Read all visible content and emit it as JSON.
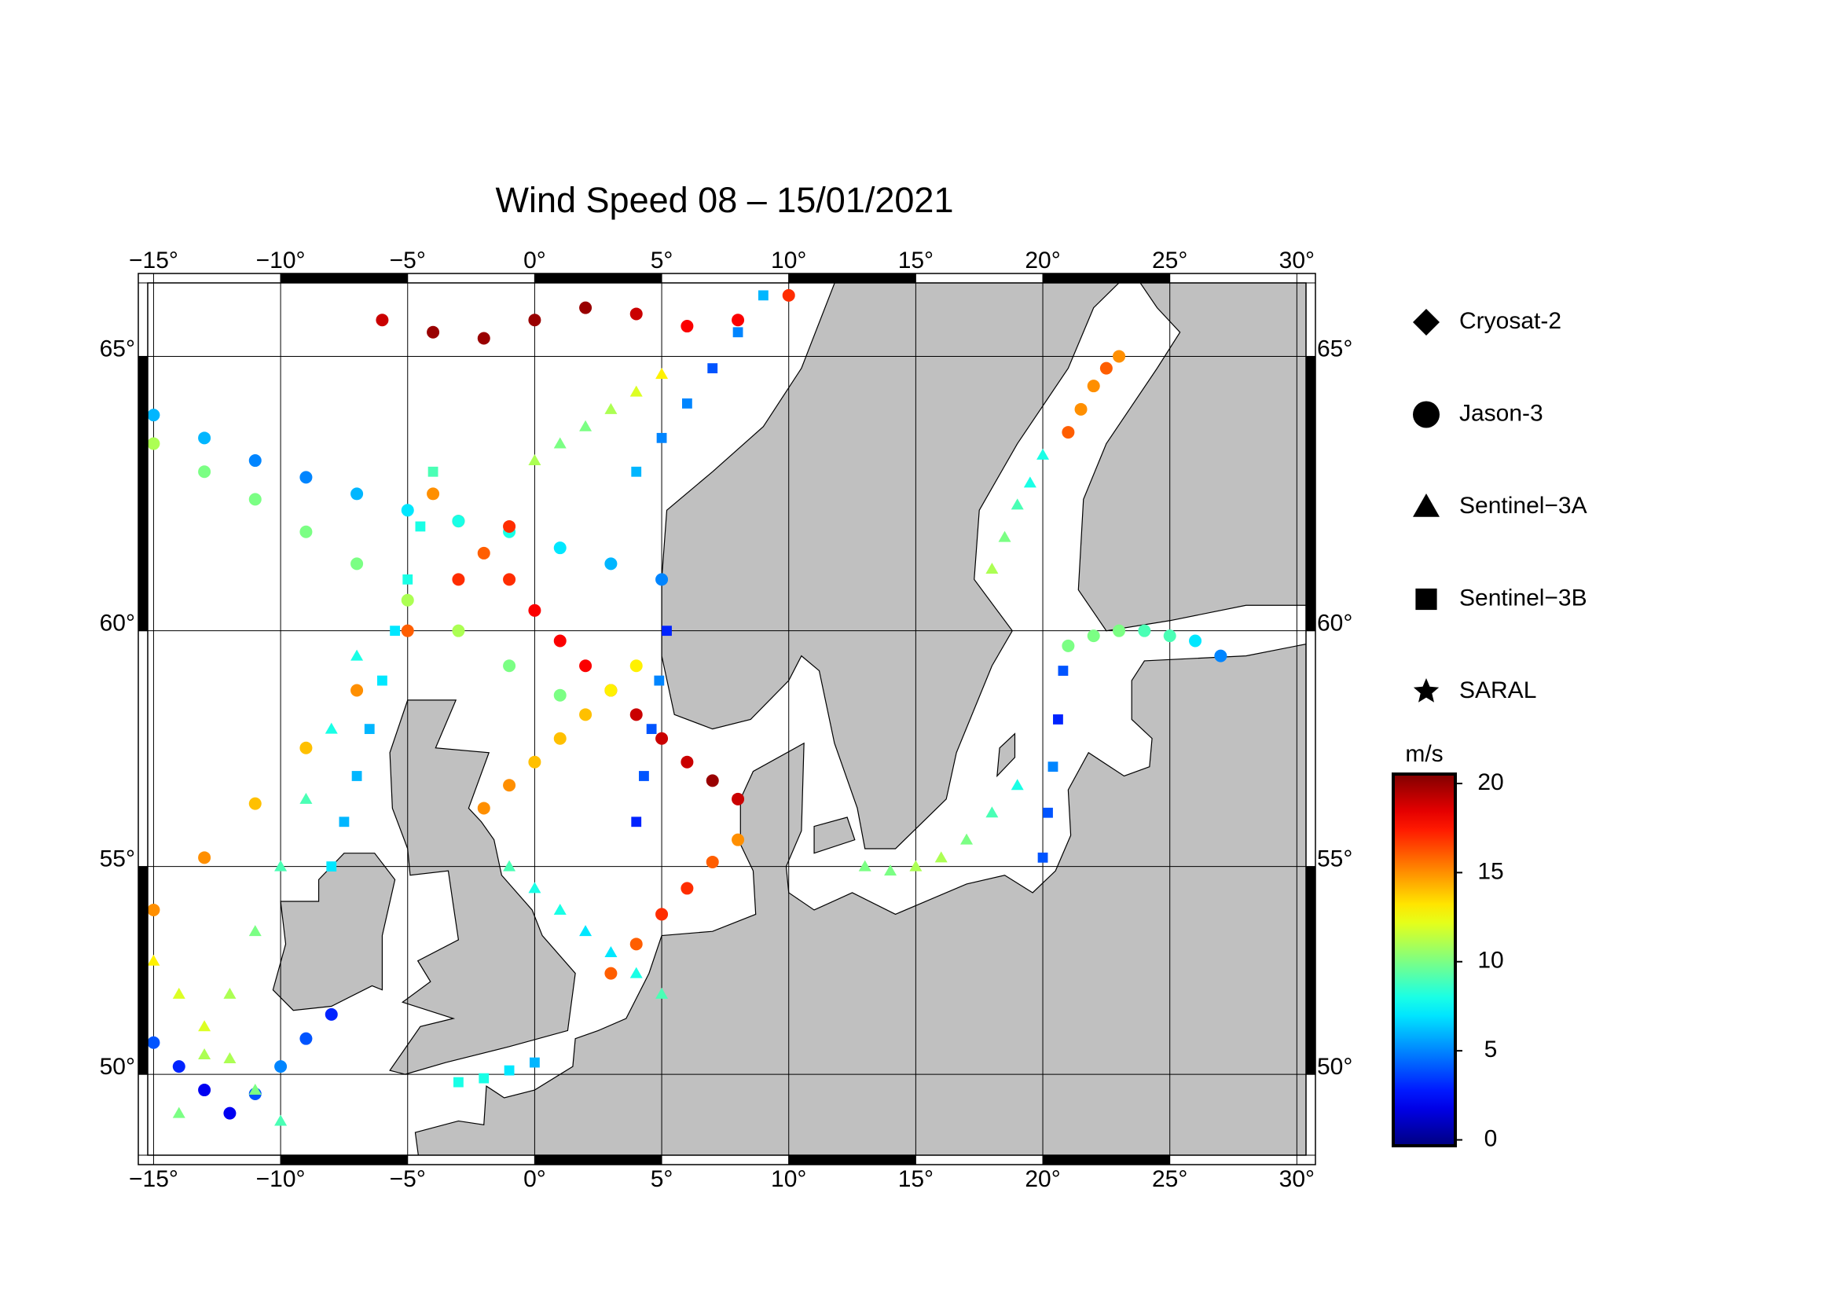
{
  "chart_data": {
    "type": "map",
    "title": "Wind Speed 08 – 15/01/2021",
    "projection": "mercator",
    "xlim": [
      -15.23,
      30.36
    ],
    "ylim": [
      47.9,
      66.2
    ],
    "xticks": [
      {
        "value": -15,
        "label": "−15°"
      },
      {
        "value": -10,
        "label": "−10°"
      },
      {
        "value": -5,
        "label": "−5°"
      },
      {
        "value": 0,
        "label": "0°"
      },
      {
        "value": 5,
        "label": "5°"
      },
      {
        "value": 10,
        "label": "10°"
      },
      {
        "value": 15,
        "label": "15°"
      },
      {
        "value": 20,
        "label": "20°"
      },
      {
        "value": 25,
        "label": "25°"
      },
      {
        "value": 30,
        "label": "30°"
      }
    ],
    "yticks": [
      {
        "value": 50,
        "label": "50°"
      },
      {
        "value": 55,
        "label": "55°"
      },
      {
        "value": 60,
        "label": "60°"
      },
      {
        "value": 65,
        "label": "65°"
      }
    ],
    "grid": true,
    "land_color": "#c0c0c0",
    "colorbar": {
      "label": "m/s",
      "colormap": "jet",
      "lim": [
        -0.33,
        20.53
      ],
      "ticks": [
        0,
        5,
        10,
        15,
        20
      ]
    },
    "series": [
      {
        "name": "Cryosat-2",
        "marker": "diamond",
        "tracks": []
      },
      {
        "name": "Jason-3",
        "marker": "circle",
        "tracks": [
          {
            "lon": [
              -4,
              -3,
              -2,
              -1,
              0,
              1,
              2,
              3,
              4,
              5,
              6,
              7,
              8
            ],
            "lat": [
              62.6,
              62.1,
              61.5,
              61,
              60.4,
              59.8,
              59.3,
              58.8,
              58.3,
              57.8,
              57.3,
              56.9,
              56.5
            ],
            "values": [
              15,
              16,
              16,
              17,
              18,
              18,
              18,
              18,
              19,
              19,
              19,
              20,
              19
            ]
          },
          {
            "lon": [
              -15,
              -13,
              -11,
              -9,
              -7,
              -5,
              -3,
              -1,
              1,
              3,
              5
            ],
            "lat": [
              64,
              63.6,
              63.2,
              62.9,
              62.6,
              62.3,
              62.1,
              61.9,
              61.6,
              61.3,
              61
            ],
            "values": [
              6,
              6,
              5,
              5,
              6,
              7,
              8,
              8,
              7,
              6,
              5
            ]
          },
          {
            "lon": [
              -15,
              -13,
              -11,
              -9,
              -7,
              -5,
              -3,
              -1
            ],
            "lat": [
              54,
              55.2,
              56.4,
              57.6,
              58.8,
              60,
              61,
              62
            ],
            "values": [
              15,
              15,
              14,
              14,
              15,
              16,
              17,
              17
            ]
          },
          {
            "lon": [
              -2,
              -1,
              0,
              1,
              2,
              3,
              4
            ],
            "lat": [
              56.3,
              56.8,
              57.3,
              57.8,
              58.3,
              58.8,
              59.3
            ],
            "values": [
              15,
              15,
              14,
              14,
              14,
              13,
              13
            ]
          },
          {
            "lon": [
              -6,
              -4,
              -2,
              0,
              2,
              4,
              6,
              8,
              10
            ],
            "lat": [
              65.6,
              65.4,
              65.3,
              65.6,
              65.8,
              65.7,
              65.5,
              65.6,
              66
            ],
            "values": [
              19,
              20,
              20,
              20,
              20,
              19,
              18,
              18,
              17
            ]
          },
          {
            "lon": [
              3,
              4,
              5,
              6,
              7,
              8
            ],
            "lat": [
              52.5,
              53.2,
              53.9,
              54.5,
              55.1,
              55.6
            ],
            "values": [
              16,
              16,
              17,
              17,
              16,
              15
            ]
          },
          {
            "lon": [
              21,
              22,
              23,
              24,
              25,
              26,
              27
            ],
            "lat": [
              59.7,
              59.9,
              60,
              60,
              59.9,
              59.8,
              59.5
            ],
            "values": [
              10,
              10,
              10,
              9,
              9,
              7,
              5
            ]
          },
          {
            "lon": [
              -15,
              -14,
              -13,
              -12,
              -11,
              -10,
              -9,
              -8
            ],
            "lat": [
              50.8,
              50.2,
              49.6,
              49,
              49.5,
              50.2,
              50.9,
              51.5
            ],
            "values": [
              4,
              3,
              2,
              2,
              4,
              5,
              4,
              3
            ]
          },
          {
            "lon": [
              -15,
              -13,
              -11,
              -9,
              -7,
              -5,
              -3,
              -1,
              1
            ],
            "lat": [
              63.5,
              63,
              62.5,
              61.9,
              61.3,
              60.6,
              60,
              59.3,
              58.7
            ],
            "values": [
              11,
              10,
              10,
              10,
              10,
              11,
              11,
              10,
              10
            ]
          },
          {
            "lon": [
              21,
              21.5,
              22,
              22.5,
              23
            ],
            "lat": [
              63.7,
              64.1,
              64.5,
              64.8,
              65
            ],
            "values": [
              16,
              15,
              15,
              16,
              15
            ]
          }
        ]
      },
      {
        "name": "Sentinel−3A",
        "marker": "triangle",
        "tracks": [
          {
            "lon": [
              -14,
              -13,
              -12,
              -11,
              -10,
              -9,
              -8,
              -7
            ],
            "lat": [
              49,
              50.5,
              52,
              53.5,
              55,
              56.5,
              58,
              59.5
            ],
            "values": [
              10,
              11,
              11,
              10,
              9,
              9,
              8,
              8
            ]
          },
          {
            "lon": [
              -15,
              -14,
              -13,
              -12,
              -11,
              -10
            ],
            "lat": [
              52.8,
              52,
              51.2,
              50.4,
              49.6,
              48.8
            ],
            "values": [
              13,
              12,
              12,
              11,
              10,
              9
            ]
          },
          {
            "lon": [
              -1,
              0,
              1,
              2,
              3,
              4,
              5
            ],
            "lat": [
              55,
              54.5,
              54,
              53.5,
              53,
              52.5,
              52
            ],
            "values": [
              9,
              8,
              8,
              7,
              7,
              8,
              9
            ]
          },
          {
            "lon": [
              13,
              14,
              15,
              16,
              17,
              18,
              19
            ],
            "lat": [
              55,
              54.9,
              55,
              55.2,
              55.6,
              56.2,
              56.8
            ],
            "values": [
              10,
              10,
              11,
              11,
              10,
              9,
              8
            ]
          },
          {
            "lon": [
              18,
              18.5,
              19,
              19.5,
              20
            ],
            "lat": [
              61.2,
              61.8,
              62.4,
              62.8,
              63.3
            ],
            "values": [
              11,
              10,
              9,
              8,
              8
            ]
          },
          {
            "lon": [
              0,
              1,
              2,
              3,
              4,
              5
            ],
            "lat": [
              63.2,
              63.5,
              63.8,
              64.1,
              64.4,
              64.7
            ],
            "values": [
              11,
              10,
              10,
              11,
              12,
              13
            ]
          }
        ]
      },
      {
        "name": "Sentinel−3B",
        "marker": "square",
        "tracks": [
          {
            "lon": [
              -8,
              -7.5,
              -7,
              -6.5,
              -6,
              -5.5,
              -5,
              -4.5,
              -4
            ],
            "lat": [
              55,
              56,
              57,
              58,
              59,
              60,
              61,
              62,
              63
            ],
            "values": [
              7,
              6,
              6,
              6,
              7,
              7,
              8,
              8,
              9
            ]
          },
          {
            "lon": [
              4,
              4.3,
              4.6,
              4.9,
              5.2
            ],
            "lat": [
              56,
              57,
              58,
              59,
              60
            ],
            "values": [
              3,
              4,
              4,
              5,
              3
            ]
          },
          {
            "lon": [
              20,
              20.2,
              20.4,
              20.6,
              20.8
            ],
            "lat": [
              55.2,
              56.2,
              57.2,
              58.2,
              59.2
            ],
            "values": [
              4,
              4,
              5,
              3,
              4
            ]
          },
          {
            "lon": [
              -3,
              -2,
              -1,
              0
            ],
            "lat": [
              49.8,
              49.9,
              50.1,
              50.3
            ],
            "values": [
              8,
              8,
              7,
              6
            ]
          },
          {
            "lon": [
              4,
              5,
              6,
              7,
              8,
              9
            ],
            "lat": [
              63,
              63.6,
              64.2,
              64.8,
              65.4,
              66
            ],
            "values": [
              6,
              5,
              5,
              4,
              5,
              6
            ]
          }
        ]
      },
      {
        "name": "SARAL",
        "marker": "star",
        "tracks": []
      }
    ]
  }
}
